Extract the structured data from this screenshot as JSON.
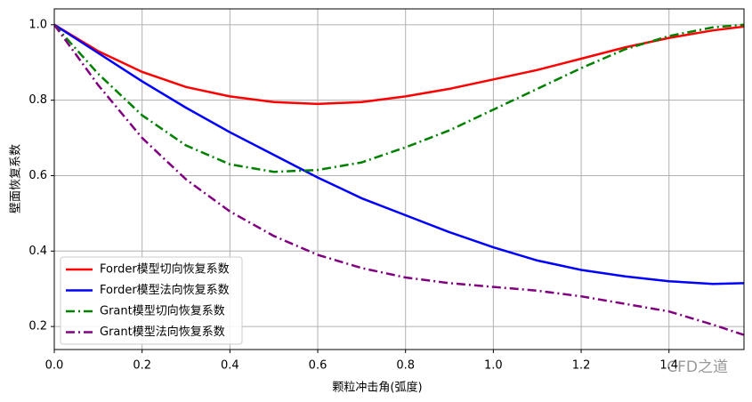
{
  "chart_data": {
    "type": "line",
    "xlabel": "颗粒冲击角(弧度)",
    "ylabel": "壁面恢复系数",
    "x": [
      0,
      0.1,
      0.2,
      0.3,
      0.4,
      0.5,
      0.6,
      0.7,
      0.8,
      0.9,
      1.0,
      1.1,
      1.2,
      1.3,
      1.4,
      1.5,
      1.57
    ],
    "series": [
      {
        "name": "Forder模型切向恢复系数",
        "color": "#ff0000",
        "dash": "solid",
        "values": [
          1.0,
          0.93,
          0.875,
          0.835,
          0.81,
          0.795,
          0.79,
          0.795,
          0.81,
          0.83,
          0.855,
          0.88,
          0.91,
          0.94,
          0.965,
          0.985,
          0.995
        ]
      },
      {
        "name": "Forder模型法向恢复系数",
        "color": "#0000ff",
        "dash": "solid",
        "values": [
          1.0,
          0.925,
          0.85,
          0.78,
          0.715,
          0.655,
          0.595,
          0.54,
          0.495,
          0.45,
          0.41,
          0.375,
          0.35,
          0.333,
          0.32,
          0.313,
          0.315
        ]
      },
      {
        "name": "Grant模型切向恢复系数",
        "color": "#008000",
        "dash": "dashdot",
        "values": [
          1.0,
          0.87,
          0.76,
          0.68,
          0.63,
          0.61,
          0.615,
          0.635,
          0.675,
          0.72,
          0.775,
          0.83,
          0.885,
          0.935,
          0.97,
          0.993,
          1.0
        ]
      },
      {
        "name": "Grant模型法向恢复系数",
        "color": "#800080",
        "dash": "dashdot",
        "values": [
          1.0,
          0.84,
          0.7,
          0.59,
          0.505,
          0.44,
          0.39,
          0.355,
          0.33,
          0.315,
          0.305,
          0.295,
          0.28,
          0.26,
          0.24,
          0.205,
          0.178
        ]
      }
    ],
    "xlim": [
      0,
      1.5708
    ],
    "ylim": [
      0.139,
      1.042
    ],
    "xticks": [
      {
        "value": 0,
        "label": "0.0"
      },
      0.2,
      0.4,
      0.6,
      0.8,
      {
        "value": 1,
        "label": "1.0"
      },
      1.2,
      1.4
    ],
    "yticks": [
      0.2,
      0.4,
      0.6,
      0.8,
      {
        "value": 1,
        "label": "1.0"
      }
    ],
    "grid": true,
    "legend": "lower left",
    "watermark": "CFD之道"
  }
}
